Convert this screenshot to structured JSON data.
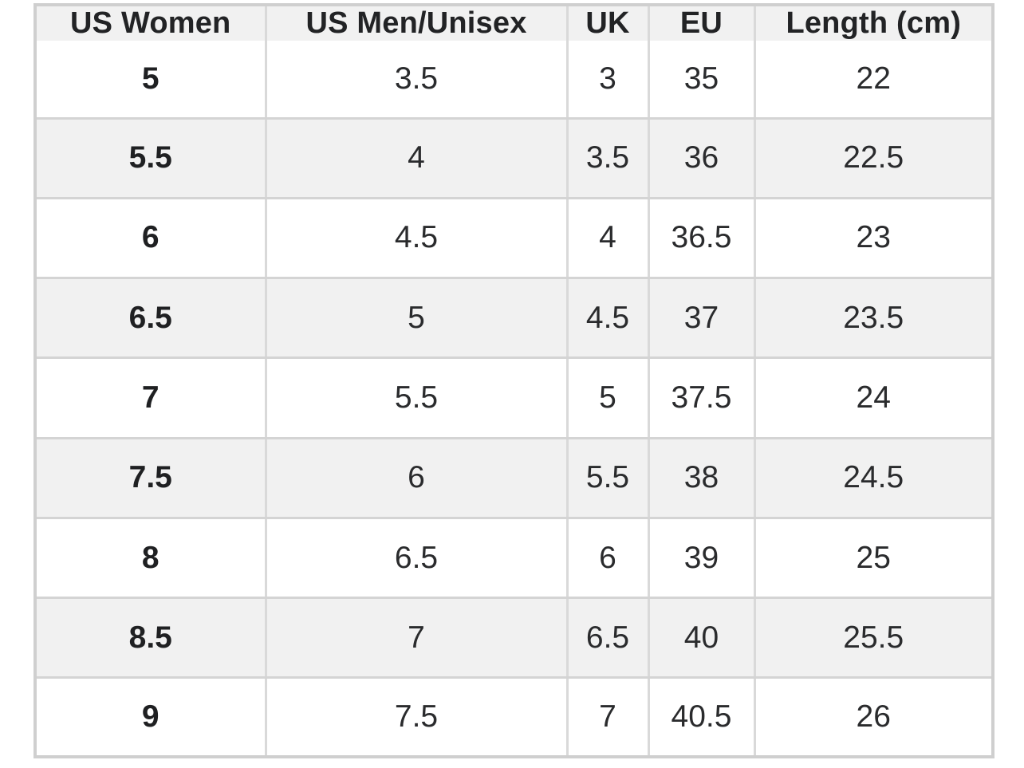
{
  "size_chart": {
    "headers": [
      "US Women",
      "US Men/Unisex",
      "UK",
      "EU",
      "Length (cm)"
    ],
    "rows": [
      [
        "5",
        "3.5",
        "3",
        "35",
        "22"
      ],
      [
        "5.5",
        "4",
        "3.5",
        "36",
        "22.5"
      ],
      [
        "6",
        "4.5",
        "4",
        "36.5",
        "23"
      ],
      [
        "6.5",
        "5",
        "4.5",
        "37",
        "23.5"
      ],
      [
        "7",
        "5.5",
        "5",
        "37.5",
        "24"
      ],
      [
        "7.5",
        "6",
        "5.5",
        "38",
        "24.5"
      ],
      [
        "8",
        "6.5",
        "6",
        "39",
        "25"
      ],
      [
        "8.5",
        "7",
        "6.5",
        "40",
        "25.5"
      ],
      [
        "9",
        "7.5",
        "7",
        "40.5",
        "26"
      ]
    ]
  },
  "colors": {
    "header_bg": "#f1f1f1",
    "alt_row_bg": "#f1f1f1",
    "row_bg": "#ffffff",
    "border": "#cfcfcf",
    "text": "#222325"
  }
}
